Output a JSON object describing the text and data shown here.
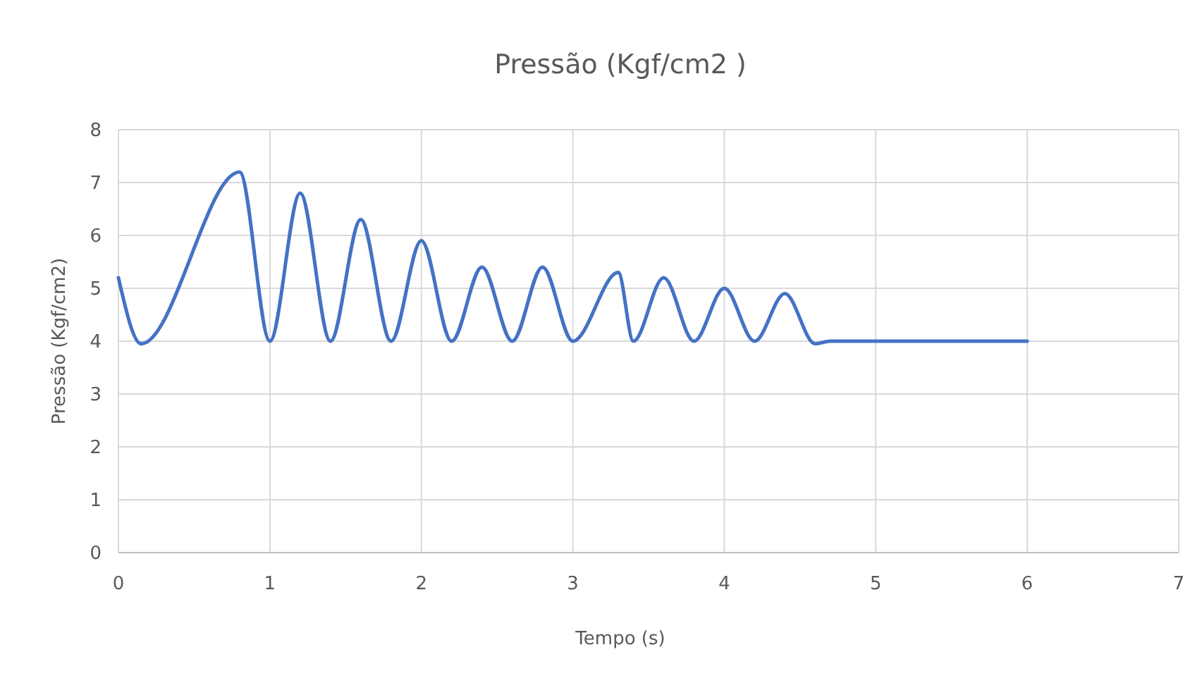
{
  "chart_data": {
    "type": "line",
    "title": "Pressão (Kgf/cm2 )",
    "xlabel": "Tempo (s)",
    "ylabel": "Pressão (Kgf/cm2)",
    "x": [
      0,
      0.15,
      0.8,
      1.0,
      1.2,
      1.4,
      1.6,
      1.8,
      2.0,
      2.2,
      2.4,
      2.6,
      2.8,
      3.0,
      3.3,
      3.4,
      3.6,
      3.8,
      4.0,
      4.2,
      4.4,
      4.6,
      4.7,
      6.0
    ],
    "series": [
      {
        "color": "#4472c4",
        "values": [
          5.2,
          3.95,
          7.2,
          4.0,
          6.8,
          4.0,
          6.3,
          4.0,
          5.9,
          4.0,
          5.4,
          4.0,
          5.4,
          4.0,
          5.3,
          4.0,
          5.2,
          4.0,
          5.0,
          4.0,
          4.9,
          3.95,
          4.0,
          4.0
        ]
      }
    ],
    "xlim": [
      0,
      7
    ],
    "xticks": [
      0,
      1,
      2,
      3,
      4,
      5,
      6,
      7
    ],
    "ylim": [
      0,
      8
    ],
    "yticks": [
      0,
      1,
      2,
      3,
      4,
      5,
      6,
      7,
      8
    ],
    "grid": true,
    "line_style": "solid",
    "marker": "none"
  }
}
